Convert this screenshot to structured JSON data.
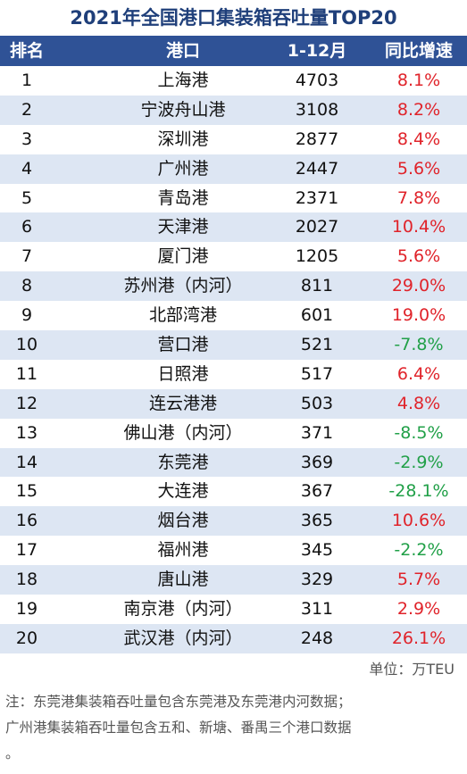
{
  "title": "2021年全国港口集装箱吞吐量TOP20",
  "columns": {
    "rank": "排名",
    "port": "港口",
    "value": "1-12月",
    "growth": "同比增速"
  },
  "rows": [
    {
      "rank": "1",
      "port": "上海港",
      "value": "4703",
      "growth": "8.1%",
      "trend": "up"
    },
    {
      "rank": "2",
      "port": "宁波舟山港",
      "value": "3108",
      "growth": "8.2%",
      "trend": "up"
    },
    {
      "rank": "3",
      "port": "深圳港",
      "value": "2877",
      "growth": "8.4%",
      "trend": "up"
    },
    {
      "rank": "4",
      "port": "广州港",
      "value": "2447",
      "growth": "5.6%",
      "trend": "up"
    },
    {
      "rank": "5",
      "port": "青岛港",
      "value": "2371",
      "growth": "7.8%",
      "trend": "up"
    },
    {
      "rank": "6",
      "port": "天津港",
      "value": "2027",
      "growth": "10.4%",
      "trend": "up"
    },
    {
      "rank": "7",
      "port": "厦门港",
      "value": "1205",
      "growth": "5.6%",
      "trend": "up"
    },
    {
      "rank": "8",
      "port": "苏州港（内河）",
      "value": "811",
      "growth": "29.0%",
      "trend": "up"
    },
    {
      "rank": "9",
      "port": "北部湾港",
      "value": "601",
      "growth": "19.0%",
      "trend": "up"
    },
    {
      "rank": "10",
      "port": "营口港",
      "value": "521",
      "growth": "-7.8%",
      "trend": "down"
    },
    {
      "rank": "11",
      "port": "日照港",
      "value": "517",
      "growth": "6.4%",
      "trend": "up"
    },
    {
      "rank": "12",
      "port": "连云港港",
      "value": "503",
      "growth": "4.8%",
      "trend": "up"
    },
    {
      "rank": "13",
      "port": "佛山港（内河）",
      "value": "371",
      "growth": "-8.5%",
      "trend": "down"
    },
    {
      "rank": "14",
      "port": "东莞港",
      "value": "369",
      "growth": "-2.9%",
      "trend": "down"
    },
    {
      "rank": "15",
      "port": "大连港",
      "value": "367",
      "growth": "-28.1%",
      "trend": "down"
    },
    {
      "rank": "16",
      "port": "烟台港",
      "value": "365",
      "growth": "10.6%",
      "trend": "up"
    },
    {
      "rank": "17",
      "port": "福州港",
      "value": "345",
      "growth": "-2.2%",
      "trend": "down"
    },
    {
      "rank": "18",
      "port": "唐山港",
      "value": "329",
      "growth": "5.7%",
      "trend": "up"
    },
    {
      "rank": "19",
      "port": "南京港（内河）",
      "value": "311",
      "growth": "2.9%",
      "trend": "up"
    },
    {
      "rank": "20",
      "port": "武汉港（内河）",
      "value": "248",
      "growth": "26.1%",
      "trend": "up"
    }
  ],
  "unit": "单位：万TEU",
  "note_lines": [
    "注：东莞港集装箱吞吐量包含东莞港及东莞港内河数据；",
    "广州港集装箱吞吐量包含五和、新塘、番禺三个港口数据",
    "。"
  ],
  "colors": {
    "header_bg": "#2f5296",
    "title": "#1f3f7a",
    "alt_row": "#dde6f3",
    "positive": "#e0232a",
    "negative": "#21a048"
  }
}
